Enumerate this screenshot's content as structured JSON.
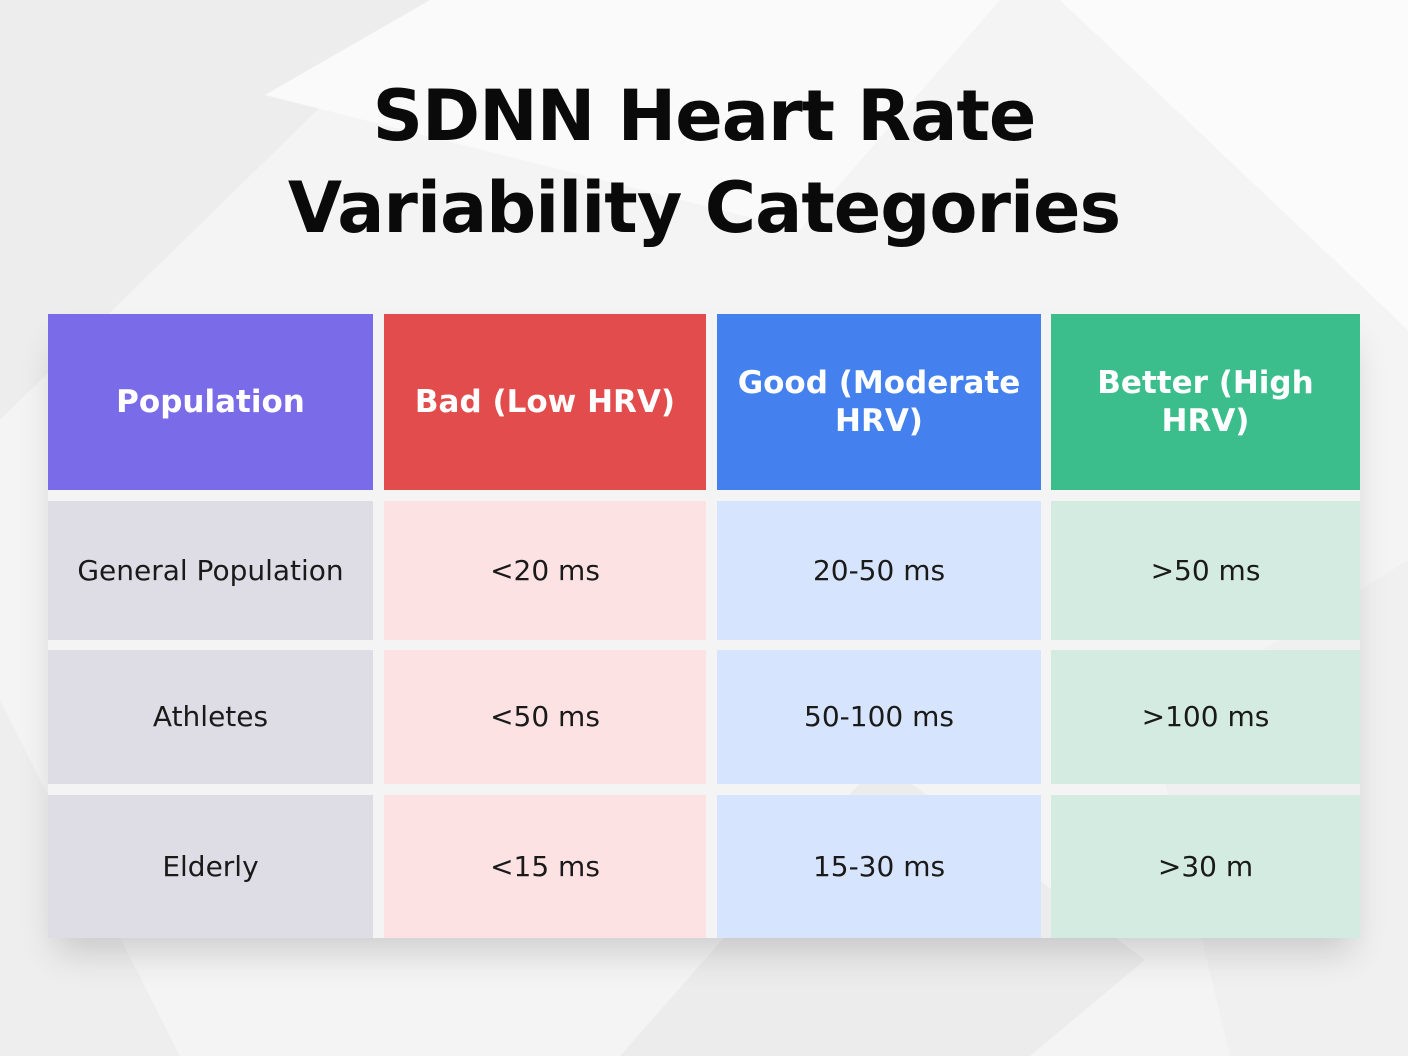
{
  "page": {
    "title_line1": "SDNN Heart Rate",
    "title_line2": "Variability Categories"
  },
  "table": {
    "headers": [
      {
        "label": "Population",
        "color": "#7a6be8"
      },
      {
        "label": "Bad (Low HRV)",
        "color": "#e34c4c"
      },
      {
        "label": "Good (Moderate HRV)",
        "color": "#4480ee"
      },
      {
        "label": "Better (High HRV)",
        "color": "#3bbd8c"
      }
    ],
    "column_fill_colors": [
      "#dedde6",
      "#fde2e4",
      "#d6e4fd",
      "#d3ebe1"
    ],
    "rows": [
      {
        "population": "General Population",
        "bad": "<20 ms",
        "good": "20-50 ms",
        "better": ">50 ms"
      },
      {
        "population": "Athletes",
        "bad": "<50 ms",
        "good": "50-100 ms",
        "better": ">100 ms"
      },
      {
        "population": "Elderly",
        "bad": "<15 ms",
        "good": "15-30 ms",
        "better": ">30 m"
      }
    ]
  }
}
